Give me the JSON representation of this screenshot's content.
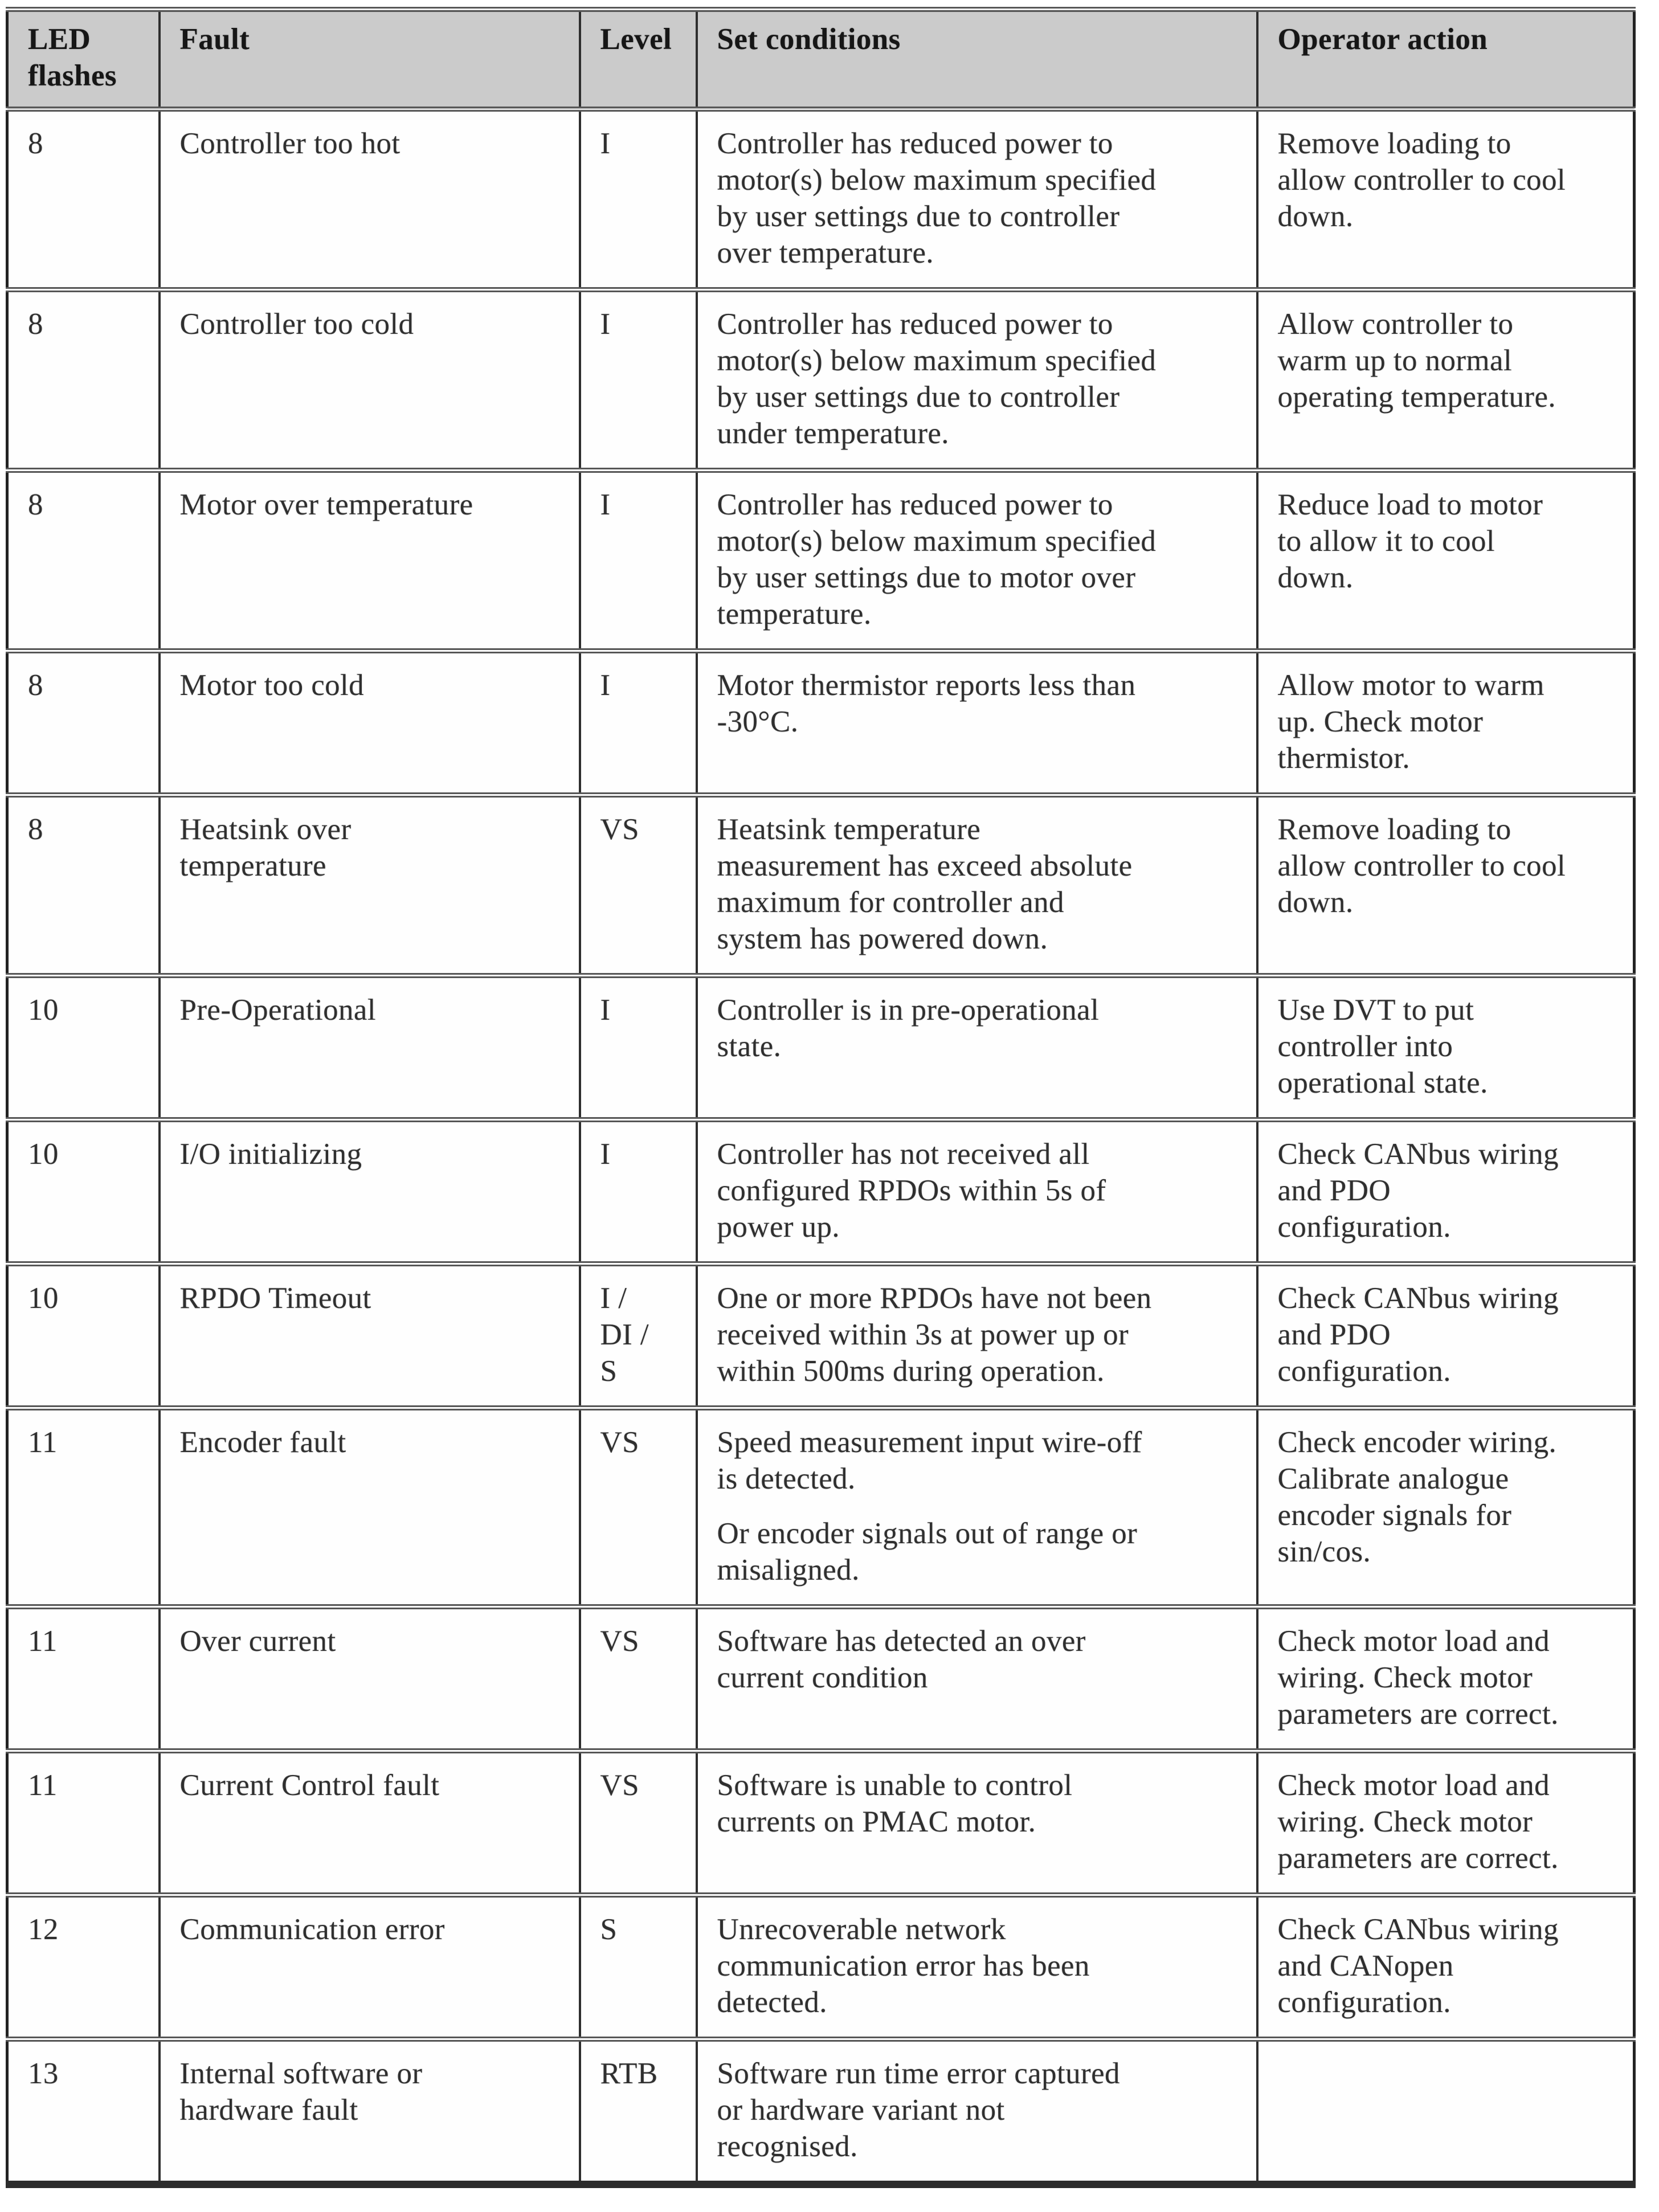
{
  "colors": {
    "page_bg": "#ffffff",
    "header_bg": "#cbcbcb",
    "border_dark": "#232323",
    "vertical_rule": "#2e2e2e",
    "row_separator": "#565656",
    "text": "#2f2f2f",
    "header_text": "#161616"
  },
  "table": {
    "columns": [
      {
        "id": "led_flashes",
        "lines": [
          "LED",
          "flashes"
        ]
      },
      {
        "id": "fault",
        "lines": [
          "Fault"
        ]
      },
      {
        "id": "level",
        "lines": [
          "Level"
        ]
      },
      {
        "id": "set_conditions",
        "lines": [
          "Set conditions"
        ]
      },
      {
        "id": "operator_action",
        "lines": [
          "Operator action"
        ]
      }
    ],
    "rows": [
      {
        "led_flashes": "8",
        "fault_lines": [
          "Controller too hot"
        ],
        "level_lines": [
          "I"
        ],
        "set_condition_paragraphs": [
          [
            "Controller has reduced power to",
            "motor(s) below maximum specified",
            "by user settings due to controller",
            "over temperature."
          ]
        ],
        "operator_action_lines": [
          "Remove loading to",
          "allow controller to cool",
          "down."
        ]
      },
      {
        "led_flashes": "8",
        "fault_lines": [
          "Controller too cold"
        ],
        "level_lines": [
          "I"
        ],
        "set_condition_paragraphs": [
          [
            "Controller has reduced power to",
            "motor(s) below maximum specified",
            "by user settings due to controller",
            "under temperature."
          ]
        ],
        "operator_action_lines": [
          "Allow controller to",
          "warm up to normal",
          "operating temperature."
        ]
      },
      {
        "led_flashes": "8",
        "fault_lines": [
          "Motor over temperature"
        ],
        "level_lines": [
          "I"
        ],
        "set_condition_paragraphs": [
          [
            "Controller has reduced power to",
            "motor(s) below maximum specified",
            "by user settings due to motor over",
            "temperature."
          ]
        ],
        "operator_action_lines": [
          "Reduce load to motor",
          "to allow it to cool",
          "down."
        ]
      },
      {
        "led_flashes": "8",
        "fault_lines": [
          "Motor too cold"
        ],
        "level_lines": [
          "I"
        ],
        "set_condition_paragraphs": [
          [
            "Motor thermistor reports less than",
            "-30°C."
          ]
        ],
        "operator_action_lines": [
          "Allow motor to warm",
          "up. Check motor",
          "thermistor."
        ]
      },
      {
        "led_flashes": "8",
        "fault_lines": [
          "Heatsink over",
          "temperature"
        ],
        "level_lines": [
          "VS"
        ],
        "set_condition_paragraphs": [
          [
            "Heatsink temperature",
            "measurement has exceed absolute",
            "maximum for controller and",
            "system has powered down."
          ]
        ],
        "operator_action_lines": [
          "Remove loading to",
          "allow controller to cool",
          "down."
        ]
      },
      {
        "led_flashes": "10",
        "fault_lines": [
          "Pre-Operational"
        ],
        "level_lines": [
          "I"
        ],
        "set_condition_paragraphs": [
          [
            "Controller is in pre-operational",
            "state."
          ]
        ],
        "operator_action_lines": [
          "Use DVT to put",
          "controller into",
          "operational state."
        ]
      },
      {
        "led_flashes": "10",
        "fault_lines": [
          "I/O initializing"
        ],
        "level_lines": [
          "I"
        ],
        "set_condition_paragraphs": [
          [
            "Controller has not received all",
            "configured RPDOs within 5s of",
            "power up."
          ]
        ],
        "operator_action_lines": [
          "Check CANbus wiring",
          "and PDO",
          "configuration."
        ]
      },
      {
        "led_flashes": "10",
        "fault_lines": [
          "RPDO Timeout"
        ],
        "level_lines": [
          "I /",
          "DI /",
          "S"
        ],
        "set_condition_paragraphs": [
          [
            "One or more RPDOs have not been",
            "received within 3s at power up or",
            "within 500ms during operation."
          ]
        ],
        "operator_action_lines": [
          "Check CANbus wiring",
          "and PDO",
          "configuration."
        ]
      },
      {
        "led_flashes": "11",
        "fault_lines": [
          "Encoder fault"
        ],
        "level_lines": [
          "VS"
        ],
        "set_condition_paragraphs": [
          [
            "Speed measurement input wire-off",
            "is detected."
          ],
          [
            "Or encoder signals out of range or",
            "misaligned."
          ]
        ],
        "operator_action_lines": [
          "Check encoder wiring.",
          "Calibrate analogue",
          "encoder signals for",
          "sin/cos."
        ]
      },
      {
        "led_flashes": "11",
        "fault_lines": [
          "Over current"
        ],
        "level_lines": [
          "VS"
        ],
        "set_condition_paragraphs": [
          [
            "Software has detected an over",
            "current condition"
          ]
        ],
        "operator_action_lines": [
          "Check motor load and",
          "wiring. Check motor",
          "parameters are correct."
        ]
      },
      {
        "led_flashes": "11",
        "fault_lines": [
          "Current Control fault"
        ],
        "level_lines": [
          "VS"
        ],
        "set_condition_paragraphs": [
          [
            "Software is unable to control",
            "currents on PMAC motor."
          ]
        ],
        "operator_action_lines": [
          "Check motor load and",
          "wiring. Check motor",
          "parameters are correct."
        ]
      },
      {
        "led_flashes": "12",
        "fault_lines": [
          "Communication error"
        ],
        "level_lines": [
          "S"
        ],
        "set_condition_paragraphs": [
          [
            "Unrecoverable network",
            "communication error has been",
            "detected."
          ]
        ],
        "operator_action_lines": [
          "Check CANbus wiring",
          "and CANopen",
          "configuration."
        ]
      },
      {
        "led_flashes": "13",
        "fault_lines": [
          "Internal software or",
          "hardware fault"
        ],
        "level_lines": [
          "RTB"
        ],
        "set_condition_paragraphs": [
          [
            "Software run time error captured",
            "or hardware variant not",
            "recognised."
          ]
        ],
        "operator_action_lines": []
      }
    ]
  }
}
